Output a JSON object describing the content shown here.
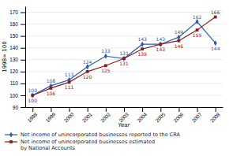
{
  "chart_data": {
    "type": "line",
    "xlabel": "Year",
    "ylabel": "1998= 100",
    "categories": [
      "1998",
      "1999",
      "2000",
      "2001",
      "2002",
      "2003",
      "2004",
      "2005",
      "2006",
      "2007",
      "2008"
    ],
    "series": [
      {
        "name": "Net income of unincorporated businesses reported to the CRA",
        "color": "#2B5EA7",
        "marker": "diamond",
        "values": [
          100,
          108,
          113,
          124,
          133,
          131,
          143,
          143,
          149,
          162,
          144
        ]
      },
      {
        "name": "Net income of unincorporated businesses estimated\nby National Accounts",
        "color": "#8B1A1A",
        "marker": "square",
        "values": [
          100,
          106,
          111,
          120,
          125,
          131,
          139,
          143,
          146,
          155,
          166
        ]
      }
    ],
    "ylim": [
      90,
      175
    ],
    "yticks": [
      90,
      100,
      110,
      120,
      130,
      140,
      150,
      160,
      170
    ],
    "grid": true,
    "legend": "bottom",
    "data_labels": true
  }
}
